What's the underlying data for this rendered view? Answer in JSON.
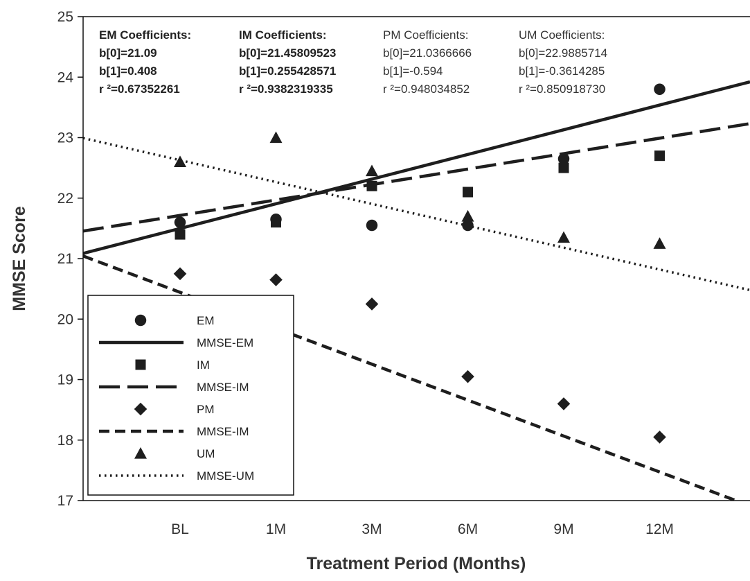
{
  "chart_data": {
    "type": "scatter",
    "xlabel": "Treatment Period (Months)",
    "ylabel": "MMSE Score",
    "categories": [
      "BL",
      "1M",
      "3M",
      "6M",
      "9M",
      "12M"
    ],
    "ylim": [
      17,
      25
    ],
    "yticks": [
      17,
      18,
      19,
      20,
      21,
      22,
      23,
      24,
      25
    ],
    "series": [
      {
        "name": "EM",
        "marker": "circle",
        "values": [
          21.6,
          21.65,
          21.55,
          21.55,
          22.65,
          23.8
        ]
      },
      {
        "name": "IM",
        "marker": "square",
        "values": [
          21.4,
          21.6,
          22.2,
          22.1,
          22.5,
          22.7
        ]
      },
      {
        "name": "PM",
        "marker": "diamond",
        "values": [
          20.75,
          20.65,
          20.25,
          19.05,
          18.6,
          18.05
        ]
      },
      {
        "name": "UM",
        "marker": "triangle",
        "values": [
          22.6,
          23.0,
          22.45,
          21.7,
          21.35,
          21.25
        ]
      }
    ],
    "fit_lines": [
      {
        "name": "MMSE-EM",
        "style": "solid",
        "intercept": 21.09,
        "slope": 0.408
      },
      {
        "name": "MMSE-IM",
        "style": "long-dash",
        "intercept": 21.45809523,
        "slope": 0.255428571
      },
      {
        "name": "MMSE-IM",
        "style": "short-dash",
        "intercept": 21.0366666,
        "slope": -0.594
      },
      {
        "name": "MMSE-UM",
        "style": "dotted",
        "intercept": 22.9885714,
        "slope": -0.3614285
      }
    ],
    "coefficient_blocks": [
      {
        "title": "EM Coefficients:",
        "b0": "b[0]=21.09",
        "b1": "b[1]=0.408",
        "r2": "r ²=0.67352261",
        "weight": "bold"
      },
      {
        "title": "IM Coefficients:",
        "b0": "b[0]=21.45809523",
        "b1": "b[1]=0.255428571",
        "r2": "r ²=0.9382319335",
        "weight": "bold"
      },
      {
        "title": "PM Coefficients:",
        "b0": "b[0]=21.0366666",
        "b1": "b[1]=-0.594",
        "r2": "r ²=0.948034852",
        "weight": "normal"
      },
      {
        "title": "UM Coefficients:",
        "b0": "b[0]=22.9885714",
        "b1": "b[1]=-0.3614285",
        "r2": "r ²=0.850918730",
        "weight": "normal"
      }
    ],
    "legend": {
      "placement": "bottom-left",
      "entries": [
        {
          "label": "EM",
          "kind": "marker",
          "marker": "circle"
        },
        {
          "label": "MMSE-EM",
          "kind": "line",
          "style": "solid"
        },
        {
          "label": "IM",
          "kind": "marker",
          "marker": "square"
        },
        {
          "label": "MMSE-IM",
          "kind": "line",
          "style": "long-dash"
        },
        {
          "label": "PM",
          "kind": "marker",
          "marker": "diamond"
        },
        {
          "label": "MMSE-IM",
          "kind": "line",
          "style": "short-dash"
        },
        {
          "label": "UM",
          "kind": "marker",
          "marker": "triangle"
        },
        {
          "label": "MMSE-UM",
          "kind": "line",
          "style": "dotted"
        }
      ]
    },
    "colors": {
      "marks": "#1e1e1e",
      "axis": "#111111",
      "text": "#333333",
      "background": "#ffffff"
    },
    "grid": false
  }
}
